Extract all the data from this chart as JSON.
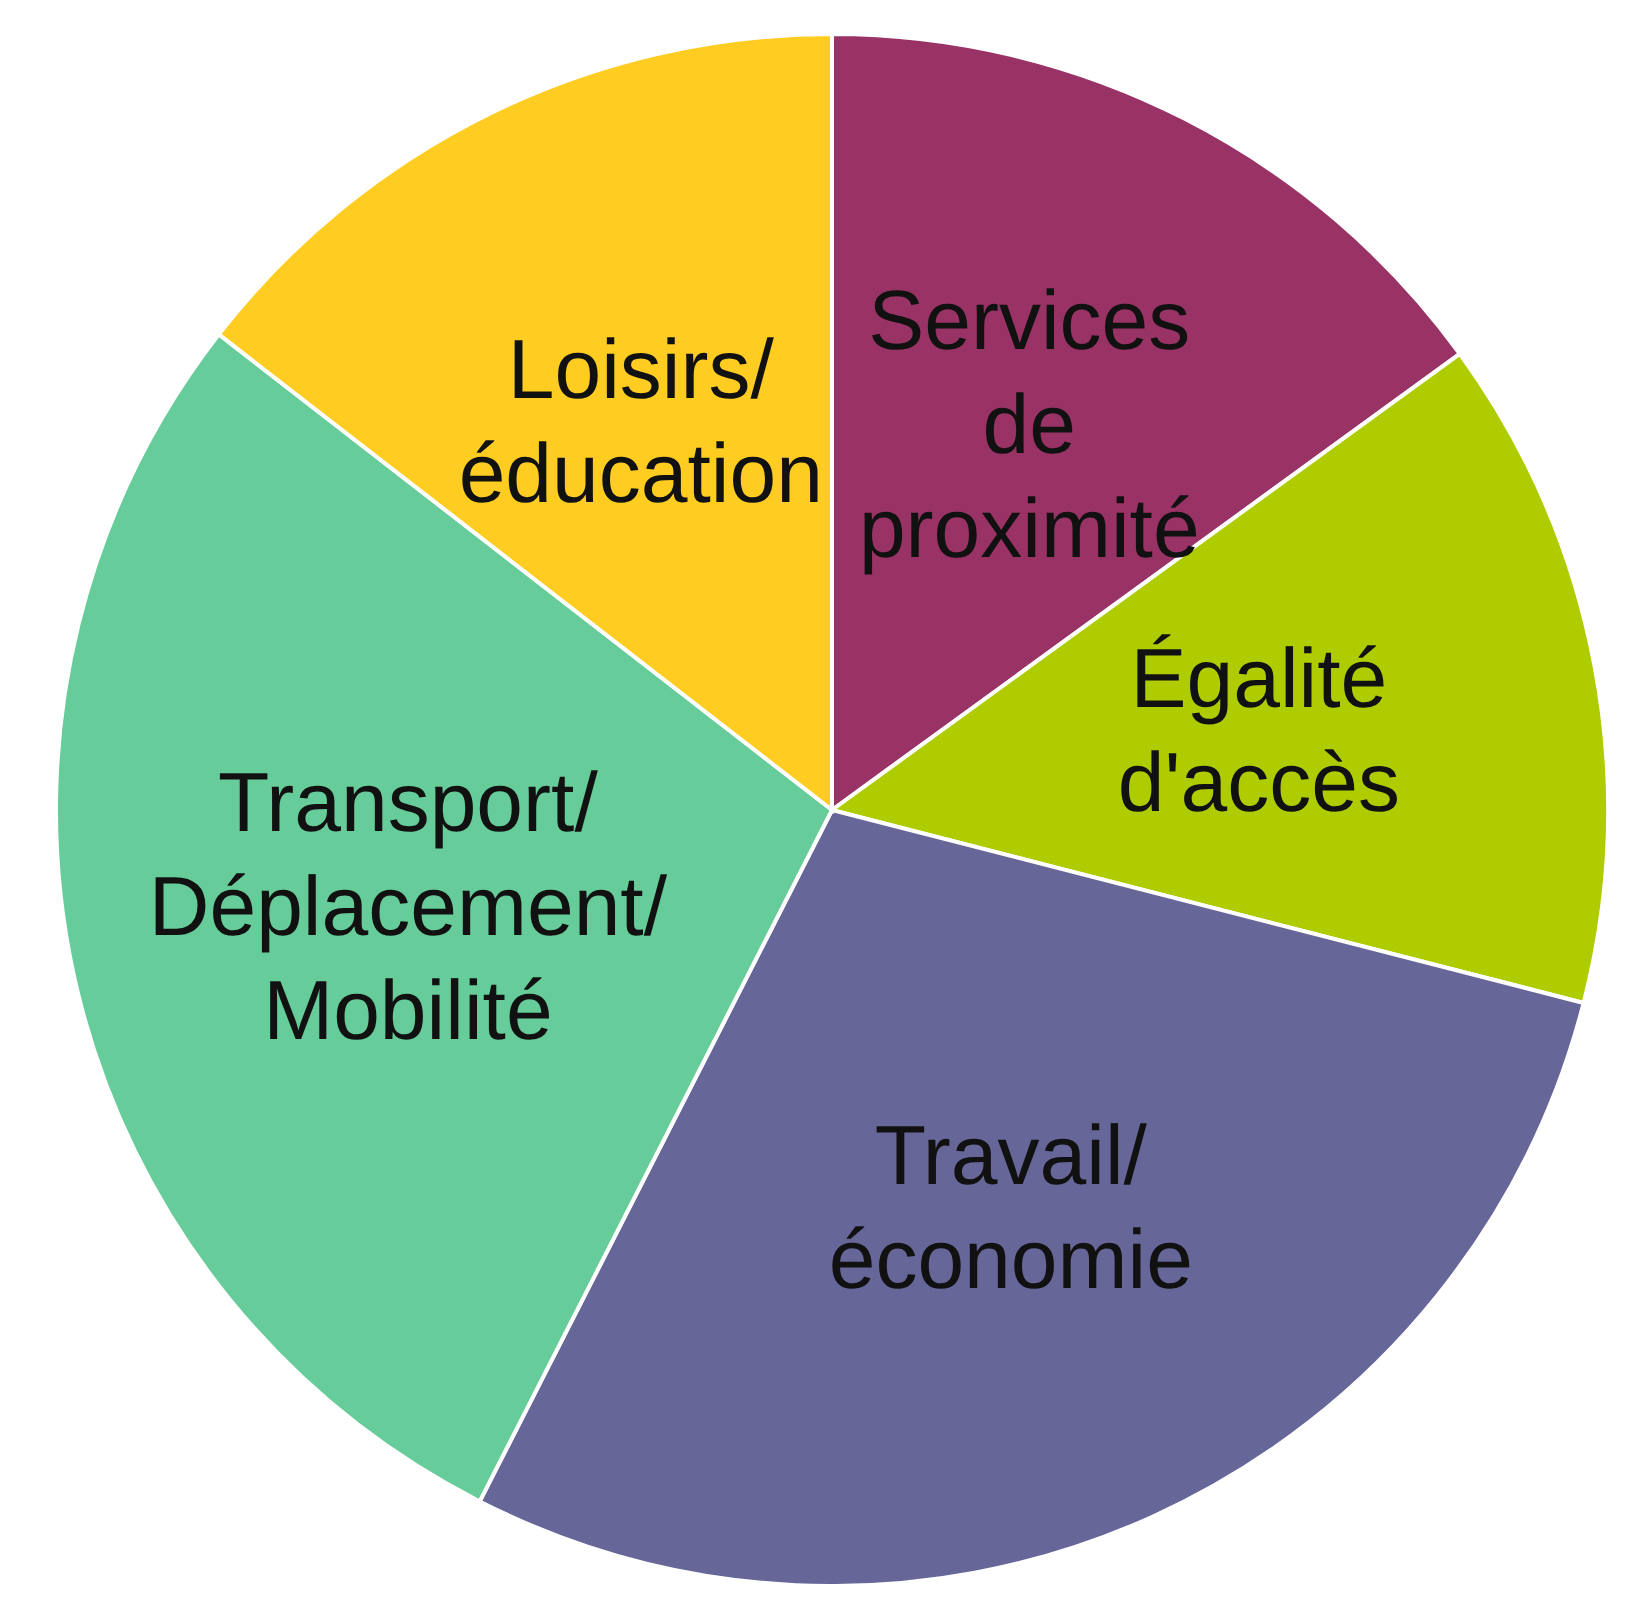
{
  "chart_data": {
    "type": "pie",
    "categories": [
      "Services de proximité",
      "Égalité d'accès",
      "Travail/économie",
      "Transport/Déplacement/Mobilité",
      "Loisirs/éducation"
    ],
    "values": [
      15,
      14,
      28.5,
      28,
      14.5
    ],
    "colors": [
      "#993366",
      "#afcc00",
      "#666699",
      "#66cc99",
      "#ffcc22"
    ],
    "legend": false
  }
}
